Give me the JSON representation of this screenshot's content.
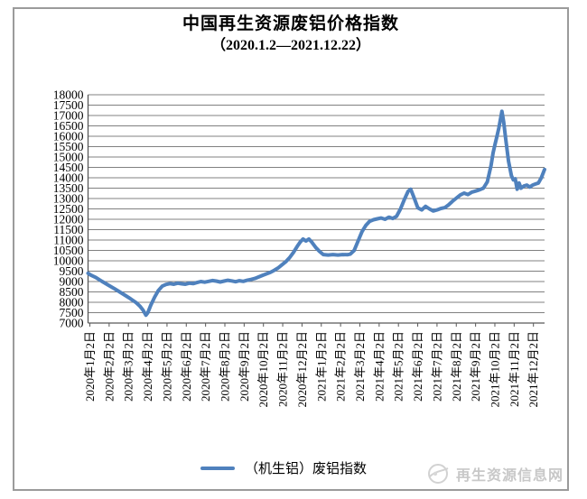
{
  "header": {
    "title": "中国再生资源废铝价格指数",
    "subtitle": "（2020.1.2—2021.12.22）"
  },
  "legend": {
    "label": "（机生铝）废铝指数"
  },
  "watermark": {
    "text": "再生资源信息网"
  },
  "colors": {
    "line": "#4F81BD",
    "grid": "#808080",
    "axis": "#595959",
    "frame": "#9b9b9b",
    "watermark": "#c8c8c8"
  },
  "chart_data": {
    "type": "line",
    "title": "中国再生资源废铝价格指数（2020.1.2—2021.12.22）",
    "xlabel": "",
    "ylabel": "",
    "ylim": [
      7000,
      18000
    ],
    "y_tick_step": 500,
    "y_ticks": [
      18000,
      17500,
      17000,
      16500,
      16000,
      15500,
      15000,
      14500,
      14000,
      13500,
      13000,
      12500,
      12000,
      11500,
      11000,
      10500,
      10000,
      9500,
      9000,
      8500,
      8000,
      7500,
      7000
    ],
    "grid": "horizontal",
    "legend_position": "bottom",
    "x_range_months": [
      0,
      23.67
    ],
    "x_tick_labels": [
      "2020年1月2日",
      "2020年2月2日",
      "2020年3月2日",
      "2020年4月2日",
      "2020年5月2日",
      "2020年6月2日",
      "2020年7月2日",
      "2020年8月2日",
      "2020年9月2日",
      "2020年10月2日",
      "2020年11月2日",
      "2020年12月2日",
      "2021年1月2日",
      "2021年2月2日",
      "2021年3月2日",
      "2021年4月2日",
      "2021年5月2日",
      "2021年6月2日",
      "2021年7月2日",
      "2021年8月2日",
      "2021年9月2日",
      "2021年10月2日",
      "2021年11月2日",
      "2021年12月2日"
    ],
    "series": [
      {
        "name": "（机生铝）废铝指数",
        "color": "#4F81BD",
        "points": [
          [
            0.0,
            9400
          ],
          [
            0.15,
            9310
          ],
          [
            0.4,
            9200
          ],
          [
            0.7,
            9020
          ],
          [
            1.0,
            8850
          ],
          [
            1.3,
            8690
          ],
          [
            1.6,
            8520
          ],
          [
            1.9,
            8350
          ],
          [
            2.2,
            8170
          ],
          [
            2.5,
            7980
          ],
          [
            2.7,
            7800
          ],
          [
            2.85,
            7620
          ],
          [
            3.0,
            7380
          ],
          [
            3.1,
            7500
          ],
          [
            3.25,
            7850
          ],
          [
            3.45,
            8250
          ],
          [
            3.65,
            8570
          ],
          [
            3.85,
            8780
          ],
          [
            4.05,
            8860
          ],
          [
            4.25,
            8900
          ],
          [
            4.45,
            8870
          ],
          [
            4.65,
            8920
          ],
          [
            4.85,
            8890
          ],
          [
            5.05,
            8870
          ],
          [
            5.25,
            8920
          ],
          [
            5.45,
            8900
          ],
          [
            5.65,
            8950
          ],
          [
            5.85,
            9000
          ],
          [
            6.05,
            8970
          ],
          [
            6.25,
            9010
          ],
          [
            6.45,
            9050
          ],
          [
            6.65,
            9020
          ],
          [
            6.85,
            8980
          ],
          [
            7.05,
            9020
          ],
          [
            7.25,
            9060
          ],
          [
            7.45,
            9030
          ],
          [
            7.65,
            8990
          ],
          [
            7.85,
            9040
          ],
          [
            8.05,
            9010
          ],
          [
            8.25,
            9060
          ],
          [
            8.45,
            9100
          ],
          [
            8.65,
            9150
          ],
          [
            8.85,
            9220
          ],
          [
            9.05,
            9300
          ],
          [
            9.25,
            9370
          ],
          [
            9.45,
            9440
          ],
          [
            9.65,
            9540
          ],
          [
            9.85,
            9650
          ],
          [
            10.05,
            9800
          ],
          [
            10.25,
            9950
          ],
          [
            10.45,
            10150
          ],
          [
            10.65,
            10400
          ],
          [
            10.85,
            10700
          ],
          [
            11.0,
            10900
          ],
          [
            11.15,
            11050
          ],
          [
            11.3,
            10950
          ],
          [
            11.45,
            11050
          ],
          [
            11.6,
            10900
          ],
          [
            11.8,
            10650
          ],
          [
            12.0,
            10450
          ],
          [
            12.2,
            10300
          ],
          [
            12.45,
            10280
          ],
          [
            12.7,
            10300
          ],
          [
            12.95,
            10280
          ],
          [
            13.2,
            10300
          ],
          [
            13.45,
            10290
          ],
          [
            13.6,
            10320
          ],
          [
            13.8,
            10500
          ],
          [
            14.0,
            10950
          ],
          [
            14.2,
            11400
          ],
          [
            14.4,
            11700
          ],
          [
            14.6,
            11900
          ],
          [
            14.8,
            11980
          ],
          [
            15.0,
            12020
          ],
          [
            15.2,
            12060
          ],
          [
            15.4,
            12000
          ],
          [
            15.6,
            12100
          ],
          [
            15.8,
            12040
          ],
          [
            16.0,
            12150
          ],
          [
            16.2,
            12500
          ],
          [
            16.4,
            12950
          ],
          [
            16.6,
            13350
          ],
          [
            16.73,
            13450
          ],
          [
            16.9,
            13050
          ],
          [
            17.1,
            12550
          ],
          [
            17.3,
            12450
          ],
          [
            17.5,
            12620
          ],
          [
            17.7,
            12500
          ],
          [
            17.9,
            12400
          ],
          [
            18.1,
            12450
          ],
          [
            18.3,
            12520
          ],
          [
            18.5,
            12560
          ],
          [
            18.7,
            12700
          ],
          [
            18.9,
            12870
          ],
          [
            19.1,
            13020
          ],
          [
            19.3,
            13170
          ],
          [
            19.5,
            13260
          ],
          [
            19.7,
            13190
          ],
          [
            19.9,
            13310
          ],
          [
            20.1,
            13360
          ],
          [
            20.3,
            13420
          ],
          [
            20.5,
            13500
          ],
          [
            20.7,
            13800
          ],
          [
            20.9,
            14600
          ],
          [
            21.0,
            15200
          ],
          [
            21.1,
            15600
          ],
          [
            21.2,
            16000
          ],
          [
            21.3,
            16400
          ],
          [
            21.4,
            16900
          ],
          [
            21.46,
            17200
          ],
          [
            21.55,
            16700
          ],
          [
            21.65,
            15900
          ],
          [
            21.8,
            14800
          ],
          [
            21.95,
            14100
          ],
          [
            22.05,
            13900
          ],
          [
            22.15,
            13950
          ],
          [
            22.25,
            13450
          ],
          [
            22.35,
            13750
          ],
          [
            22.45,
            13500
          ],
          [
            22.6,
            13600
          ],
          [
            22.75,
            13650
          ],
          [
            22.9,
            13550
          ],
          [
            23.05,
            13650
          ],
          [
            23.2,
            13700
          ],
          [
            23.35,
            13750
          ],
          [
            23.5,
            14000
          ],
          [
            23.67,
            14400
          ]
        ]
      }
    ]
  }
}
